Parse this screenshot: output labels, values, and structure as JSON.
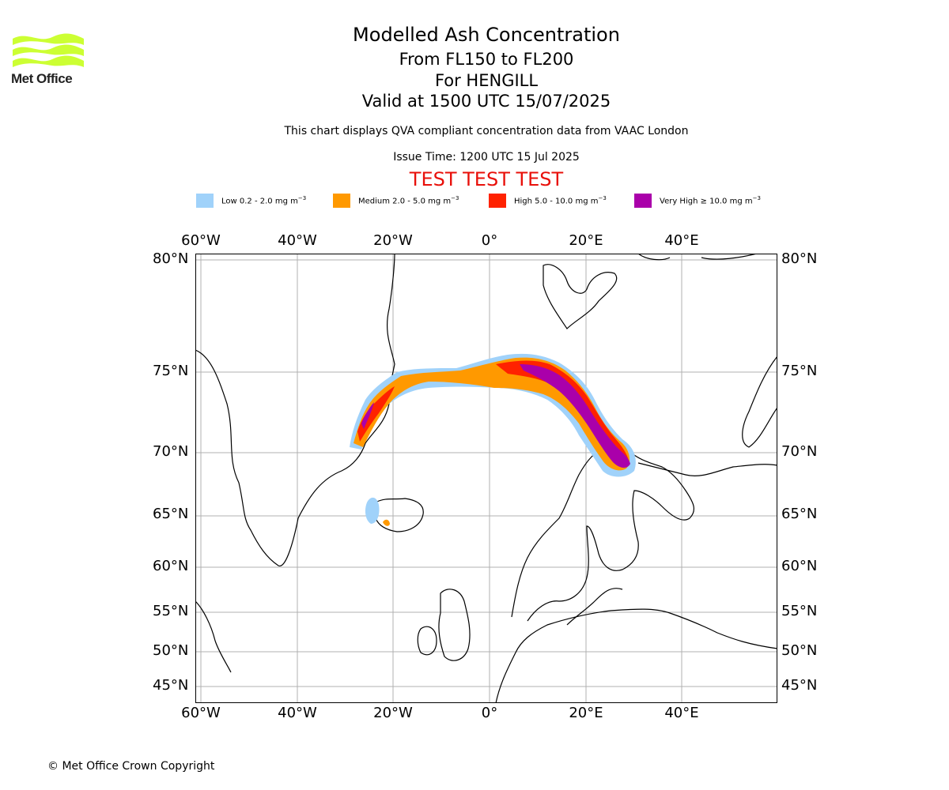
{
  "logo": {
    "text": "Met Office",
    "color": "#ccff33",
    "icon": "met-office-waves-icon"
  },
  "title": {
    "main": "Modelled Ash Concentration",
    "levels": "From FL150 to FL200",
    "volcano": "For HENGILL",
    "valid": "Valid at 1500 UTC 15/07/2025"
  },
  "note": "This chart displays QVA compliant concentration data from VAAC London",
  "issue_time": "Issue Time: 1200 UTC 15 Jul 2025",
  "test_banner": "TEST TEST TEST",
  "legend": [
    {
      "label": "Low 0.2 - 2.0 mg m",
      "unit_exp": "−3",
      "color": "#a0d2fa"
    },
    {
      "label": "Medium 2.0 - 5.0 mg m",
      "unit_exp": "−3",
      "color": "#ff9900"
    },
    {
      "label": "High 5.0 - 10.0 mg m",
      "unit_exp": "−3",
      "color": "#ff2200"
    },
    {
      "label": "Very High  ≥  10.0 mg m",
      "unit_exp": "−3",
      "color": "#aa00aa"
    }
  ],
  "map": {
    "lon_labels": [
      "60°W",
      "40°W",
      "20°W",
      "0°",
      "20°E",
      "40°E"
    ],
    "lat_labels": [
      "80°N",
      "75°N",
      "70°N",
      "65°N",
      "60°N",
      "55°N",
      "50°N",
      "45°N"
    ],
    "gridline_color": "#b0b0b0",
    "coastline_color": "#000000"
  },
  "copyright": "© Met Office Crown Copyright"
}
